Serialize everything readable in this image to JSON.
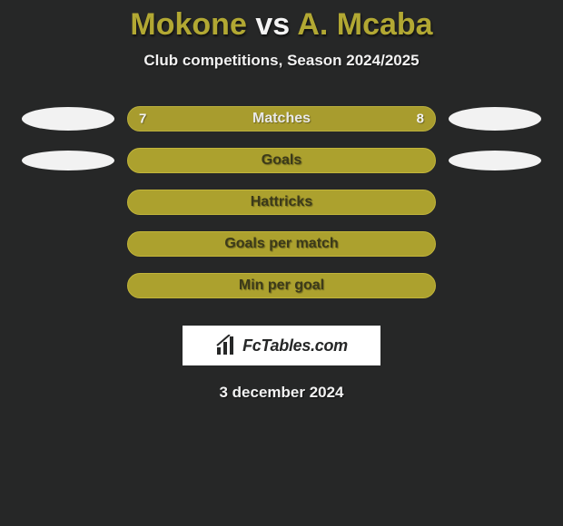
{
  "title": {
    "player1": "Mokone",
    "vs": "vs",
    "player2": "A. Mcaba",
    "player1_color": "#b2a833",
    "vs_color": "#f4f4f4",
    "player2_color": "#b2a833"
  },
  "subtitle": "Club competitions, Season 2024/2025",
  "date": "3 december 2024",
  "background_color": "#262727",
  "ellipse_colors": {
    "left": "#f2f2f2",
    "right": "#f2f2f2"
  },
  "rows": [
    {
      "label": "Matches",
      "left_value": "7",
      "right_value": "8",
      "show_ellipses": true,
      "bar_bg": "#a89c2e",
      "bar_border": "#b9af3c",
      "label_color": "#e9e9e9",
      "value_color": "#f2f2f2",
      "ellipse_height": 26
    },
    {
      "label": "Goals",
      "left_value": "",
      "right_value": "",
      "show_ellipses": true,
      "bar_bg": "#aca12e",
      "bar_border": "#c2b53a",
      "label_color": "#3c3a1a",
      "value_color": "#f2f2f2",
      "ellipse_height": 22
    },
    {
      "label": "Hattricks",
      "left_value": "",
      "right_value": "",
      "show_ellipses": false,
      "bar_bg": "#aca12e",
      "bar_border": "#c2b53a",
      "label_color": "#3c3a1a",
      "value_color": "#f2f2f2"
    },
    {
      "label": "Goals per match",
      "left_value": "",
      "right_value": "",
      "show_ellipses": false,
      "bar_bg": "#aca12e",
      "bar_border": "#c2b53a",
      "label_color": "#3c3a1a",
      "value_color": "#f2f2f2"
    },
    {
      "label": "Min per goal",
      "left_value": "",
      "right_value": "",
      "show_ellipses": false,
      "bar_bg": "#aca12e",
      "bar_border": "#c2b53a",
      "label_color": "#3c3a1a",
      "value_color": "#f2f2f2"
    }
  ],
  "fctables": {
    "text": "FcTables.com"
  }
}
